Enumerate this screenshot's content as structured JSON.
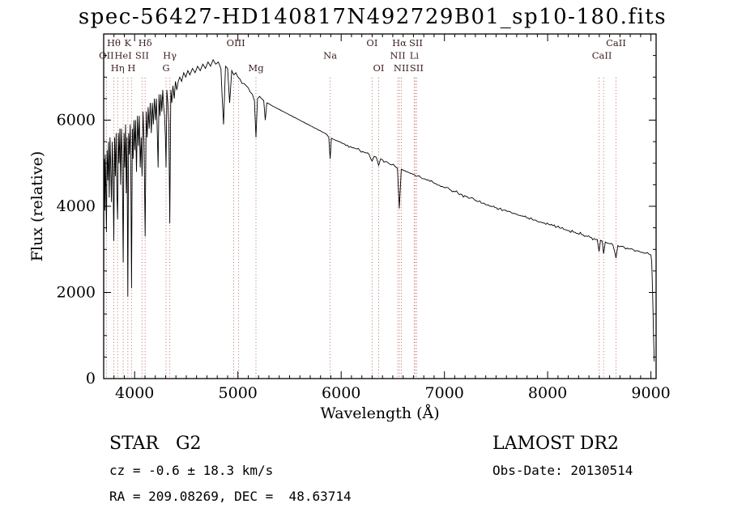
{
  "title": "spec-56427-HD140817N492729B01_sp10-180.fits",
  "footer": {
    "class_label": "STAR   G2",
    "survey": "LAMOST DR2",
    "cz": "cz = -0.6 ± 18.3 km/s",
    "obs_date": "Obs-Date: 20130514",
    "coords": "RA = 209.08269, DEC =  48.63714"
  },
  "chart_data": {
    "type": "line",
    "title": "spec-56427-HD140817N492729B01_sp10-180.fits",
    "xlabel": "Wavelength (Å)",
    "ylabel": "Flux (relative)",
    "xlim": [
      3700,
      9050
    ],
    "ylim": [
      0,
      8000
    ],
    "x_ticks": [
      4000,
      5000,
      6000,
      7000,
      8000,
      9000
    ],
    "y_ticks": [
      0,
      2000,
      4000,
      6000
    ],
    "x_minor_step": 100,
    "y_minor_step": 500,
    "grid": false,
    "axis_color": "#000000",
    "line_markers": {
      "color": "#bc6a62",
      "label_color": "#402020",
      "items": [
        {
          "label": "Hθ",
          "wavelength": 3798,
          "row": 0
        },
        {
          "label": "K",
          "wavelength": 3934,
          "row": 0
        },
        {
          "label": "Hδ",
          "wavelength": 4102,
          "row": 0
        },
        {
          "label": "OIII",
          "wavelength": 4980,
          "row": 0
        },
        {
          "label": "OI",
          "wavelength": 6300,
          "row": 0
        },
        {
          "label": "Hα",
          "wavelength": 6563,
          "row": 0
        },
        {
          "label": "SII",
          "wavelength": 6724,
          "row": 0
        },
        {
          "label": "CaII",
          "wavelength": 8662,
          "row": 0
        },
        {
          "label": "OII",
          "wavelength": 3727,
          "row": 1
        },
        {
          "label": "HeI",
          "wavelength": 3889,
          "row": 1
        },
        {
          "label": "SII",
          "wavelength": 4072,
          "row": 1
        },
        {
          "label": "Hγ",
          "wavelength": 4340,
          "row": 1
        },
        {
          "label": "Na",
          "wavelength": 5893,
          "row": 1
        },
        {
          "label": "NII",
          "wavelength": 6548,
          "row": 1
        },
        {
          "label": "Li",
          "wavelength": 6708,
          "row": 1
        },
        {
          "label": "CaII",
          "wavelength": 8525,
          "row": 1
        },
        {
          "label": "Hη",
          "wavelength": 3835,
          "row": 2
        },
        {
          "label": "H",
          "wavelength": 3970,
          "row": 2
        },
        {
          "label": "G",
          "wavelength": 4304,
          "row": 2
        },
        {
          "label": "Mg",
          "wavelength": 5175,
          "row": 2
        },
        {
          "label": "OI",
          "wavelength": 6363,
          "row": 2
        },
        {
          "label": "NII",
          "wavelength": 6583,
          "row": 2
        },
        {
          "label": "SII",
          "wavelength": 6731,
          "row": 2
        }
      ],
      "line_wavelengths": [
        3727,
        3798,
        3835,
        3889,
        3934,
        3970,
        4072,
        4102,
        4304,
        4340,
        4959,
        5007,
        5175,
        5893,
        6300,
        6363,
        6548,
        6563,
        6583,
        6708,
        6717,
        6731,
        8498,
        8542,
        8662
      ]
    },
    "noise_profile": [
      {
        "up_to": 4450,
        "amp": 230
      },
      {
        "up_to": 5450,
        "amp": 110
      },
      {
        "up_to": 6900,
        "amp": 55
      },
      {
        "up_to": 9100,
        "amp": 48
      }
    ],
    "series": [
      {
        "name": "spectrum",
        "color": "#000000",
        "points": [
          [
            3700,
            600
          ],
          [
            3702,
            4700
          ],
          [
            3706,
            5100
          ],
          [
            3711,
            3900
          ],
          [
            3716,
            5200
          ],
          [
            3721,
            4400
          ],
          [
            3727,
            3400
          ],
          [
            3733,
            5300
          ],
          [
            3740,
            4600
          ],
          [
            3747,
            5500
          ],
          [
            3754,
            4200
          ],
          [
            3761,
            5600
          ],
          [
            3768,
            4900
          ],
          [
            3775,
            4100
          ],
          [
            3783,
            5500
          ],
          [
            3790,
            4800
          ],
          [
            3798,
            3200
          ],
          [
            3806,
            5600
          ],
          [
            3813,
            4700
          ],
          [
            3821,
            5700
          ],
          [
            3828,
            4300
          ],
          [
            3835,
            3700
          ],
          [
            3842,
            5700
          ],
          [
            3849,
            5000
          ],
          [
            3857,
            5800
          ],
          [
            3864,
            4500
          ],
          [
            3872,
            5800
          ],
          [
            3880,
            5100
          ],
          [
            3889,
            2700
          ],
          [
            3897,
            5700
          ],
          [
            3904,
            4900
          ],
          [
            3912,
            5900
          ],
          [
            3919,
            4300
          ],
          [
            3926,
            5600
          ],
          [
            3934,
            1900
          ],
          [
            3942,
            5700
          ],
          [
            3949,
            5200
          ],
          [
            3957,
            5900
          ],
          [
            3963,
            4800
          ],
          [
            3970,
            2100
          ],
          [
            3978,
            5800
          ],
          [
            3985,
            5100
          ],
          [
            3993,
            6000
          ],
          [
            4001,
            5300
          ],
          [
            4009,
            6000
          ],
          [
            4018,
            4800
          ],
          [
            4027,
            6100
          ],
          [
            4036,
            5400
          ],
          [
            4045,
            6100
          ],
          [
            4054,
            4900
          ],
          [
            4063,
            5600
          ],
          [
            4072,
            4700
          ],
          [
            4081,
            6200
          ],
          [
            4091,
            5500
          ],
          [
            4102,
            3300
          ],
          [
            4112,
            6200
          ],
          [
            4121,
            5600
          ],
          [
            4131,
            6300
          ],
          [
            4141,
            5800
          ],
          [
            4151,
            6400
          ],
          [
            4161,
            5700
          ],
          [
            4171,
            6400
          ],
          [
            4181,
            5900
          ],
          [
            4191,
            6500
          ],
          [
            4201,
            6000
          ],
          [
            4211,
            6500
          ],
          [
            4219,
            5700
          ],
          [
            4227,
            4900
          ],
          [
            4236,
            6600
          ],
          [
            4245,
            6100
          ],
          [
            4254,
            6600
          ],
          [
            4263,
            6200
          ],
          [
            4272,
            6700
          ],
          [
            4281,
            6300
          ],
          [
            4290,
            6100
          ],
          [
            4298,
            5600
          ],
          [
            4304,
            4900
          ],
          [
            4312,
            6700
          ],
          [
            4321,
            6400
          ],
          [
            4331,
            5900
          ],
          [
            4340,
            3600
          ],
          [
            4350,
            6700
          ],
          [
            4360,
            6400
          ],
          [
            4371,
            6800
          ],
          [
            4383,
            6500
          ],
          [
            4395,
            6900
          ],
          [
            4408,
            6700
          ],
          [
            4422,
            6900
          ],
          [
            4437,
            7000
          ],
          [
            4455,
            6900
          ],
          [
            4475,
            7100
          ],
          [
            4495,
            7000
          ],
          [
            4515,
            7150
          ],
          [
            4535,
            7050
          ],
          [
            4560,
            7200
          ],
          [
            4585,
            7100
          ],
          [
            4610,
            7250
          ],
          [
            4635,
            7150
          ],
          [
            4660,
            7300
          ],
          [
            4685,
            7200
          ],
          [
            4710,
            7350
          ],
          [
            4735,
            7250
          ],
          [
            4760,
            7400
          ],
          [
            4785,
            7300
          ],
          [
            4810,
            7350
          ],
          [
            4835,
            7200
          ],
          [
            4861,
            5900
          ],
          [
            4880,
            7250
          ],
          [
            4900,
            7200
          ],
          [
            4920,
            6400
          ],
          [
            4940,
            7150
          ],
          [
            4960,
            7050
          ],
          [
            4980,
            7100
          ],
          [
            5000,
            7000
          ],
          [
            5020,
            6950
          ],
          [
            5040,
            6850
          ],
          [
            5060,
            6850
          ],
          [
            5080,
            6800
          ],
          [
            5100,
            6750
          ],
          [
            5120,
            6650
          ],
          [
            5140,
            6600
          ],
          [
            5160,
            6450
          ],
          [
            5175,
            5600
          ],
          [
            5190,
            6500
          ],
          [
            5210,
            6550
          ],
          [
            5230,
            6500
          ],
          [
            5250,
            6450
          ],
          [
            5265,
            6000
          ],
          [
            5280,
            6400
          ],
          [
            5300,
            6380
          ],
          [
            5320,
            6350
          ],
          [
            5340,
            6320
          ],
          [
            5360,
            6300
          ],
          [
            5380,
            6270
          ],
          [
            5400,
            6250
          ],
          [
            5420,
            6220
          ],
          [
            5440,
            6200
          ],
          [
            5460,
            6170
          ],
          [
            5480,
            6150
          ],
          [
            5500,
            6120
          ],
          [
            5520,
            6100
          ],
          [
            5540,
            6070
          ],
          [
            5560,
            6050
          ],
          [
            5580,
            6020
          ],
          [
            5600,
            6000
          ],
          [
            5620,
            5970
          ],
          [
            5640,
            5950
          ],
          [
            5660,
            5920
          ],
          [
            5680,
            5900
          ],
          [
            5700,
            5870
          ],
          [
            5720,
            5850
          ],
          [
            5740,
            5820
          ],
          [
            5760,
            5800
          ],
          [
            5780,
            5770
          ],
          [
            5800,
            5750
          ],
          [
            5820,
            5720
          ],
          [
            5840,
            5700
          ],
          [
            5860,
            5670
          ],
          [
            5880,
            5600
          ],
          [
            5893,
            5100
          ],
          [
            5905,
            5580
          ],
          [
            5920,
            5560
          ],
          [
            5940,
            5540
          ],
          [
            5960,
            5520
          ],
          [
            5980,
            5500
          ],
          [
            6000,
            5480
          ],
          [
            6030,
            5450
          ],
          [
            6060,
            5420
          ],
          [
            6090,
            5390
          ],
          [
            6120,
            5360
          ],
          [
            6150,
            5330
          ],
          [
            6180,
            5300
          ],
          [
            6210,
            5270
          ],
          [
            6240,
            5240
          ],
          [
            6270,
            5210
          ],
          [
            6300,
            5050
          ],
          [
            6320,
            5160
          ],
          [
            6340,
            5140
          ],
          [
            6363,
            4950
          ],
          [
            6382,
            5100
          ],
          [
            6400,
            5080
          ],
          [
            6430,
            5040
          ],
          [
            6460,
            5000
          ],
          [
            6490,
            4960
          ],
          [
            6520,
            4930
          ],
          [
            6545,
            4880
          ],
          [
            6563,
            3950
          ],
          [
            6582,
            4860
          ],
          [
            6600,
            4840
          ],
          [
            6620,
            4820
          ],
          [
            6650,
            4790
          ],
          [
            6680,
            4760
          ],
          [
            6710,
            4730
          ],
          [
            6740,
            4700
          ],
          [
            6770,
            4670
          ],
          [
            6800,
            4640
          ],
          [
            6830,
            4610
          ],
          [
            6860,
            4580
          ],
          [
            6890,
            4550
          ],
          [
            6920,
            4520
          ],
          [
            6950,
            4490
          ],
          [
            6980,
            4460
          ],
          [
            7010,
            4430
          ],
          [
            7050,
            4390
          ],
          [
            7090,
            4350
          ],
          [
            7130,
            4310
          ],
          [
            7170,
            4270
          ],
          [
            7210,
            4230
          ],
          [
            7250,
            4190
          ],
          [
            7290,
            4150
          ],
          [
            7330,
            4110
          ],
          [
            7370,
            4070
          ],
          [
            7410,
            4030
          ],
          [
            7450,
            4000
          ],
          [
            7490,
            3970
          ],
          [
            7530,
            3940
          ],
          [
            7570,
            3910
          ],
          [
            7610,
            3880
          ],
          [
            7650,
            3850
          ],
          [
            7690,
            3820
          ],
          [
            7730,
            3790
          ],
          [
            7770,
            3760
          ],
          [
            7810,
            3730
          ],
          [
            7850,
            3700
          ],
          [
            7890,
            3670
          ],
          [
            7930,
            3640
          ],
          [
            7970,
            3610
          ],
          [
            8010,
            3580
          ],
          [
            8050,
            3550
          ],
          [
            8090,
            3520
          ],
          [
            8130,
            3490
          ],
          [
            8170,
            3460
          ],
          [
            8210,
            3430
          ],
          [
            8250,
            3400
          ],
          [
            8290,
            3370
          ],
          [
            8330,
            3340
          ],
          [
            8370,
            3310
          ],
          [
            8410,
            3280
          ],
          [
            8450,
            3250
          ],
          [
            8480,
            3230
          ],
          [
            8498,
            2950
          ],
          [
            8512,
            3210
          ],
          [
            8528,
            3190
          ],
          [
            8542,
            2900
          ],
          [
            8558,
            3170
          ],
          [
            8575,
            3150
          ],
          [
            8600,
            3130
          ],
          [
            8630,
            3110
          ],
          [
            8662,
            2800
          ],
          [
            8680,
            3090
          ],
          [
            8710,
            3070
          ],
          [
            8740,
            3050
          ],
          [
            8770,
            3030
          ],
          [
            8800,
            3010
          ],
          [
            8830,
            2990
          ],
          [
            8860,
            2970
          ],
          [
            8890,
            2950
          ],
          [
            8920,
            2930
          ],
          [
            8950,
            2910
          ],
          [
            8980,
            2890
          ],
          [
            9000,
            2870
          ],
          [
            9008,
            2700
          ],
          [
            9016,
            2000
          ],
          [
            9024,
            1100
          ],
          [
            9032,
            400
          ]
        ]
      }
    ]
  }
}
